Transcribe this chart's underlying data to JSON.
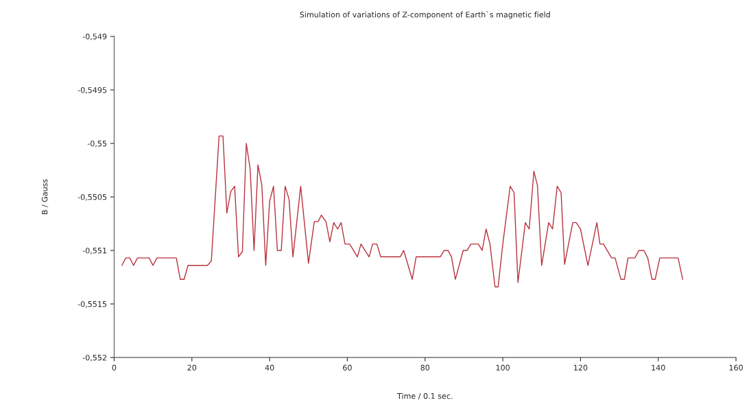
{
  "chart_data": {
    "type": "line",
    "title": "Simulation of variations of Z-component of Earth`s magnetic field",
    "xlabel": "Time / 0.1 sec.",
    "ylabel": "B / Gauss",
    "xlim": [
      0,
      160
    ],
    "xticks": [
      0,
      20,
      40,
      60,
      80,
      100,
      120,
      140,
      160
    ],
    "ylim": [
      -0.552,
      -0.549
    ],
    "yticks": [
      {
        "value": -0.552,
        "label": "-0,552"
      },
      {
        "value": -0.5515,
        "label": "-0,5515"
      },
      {
        "value": -0.551,
        "label": "-0,551"
      },
      {
        "value": -0.5505,
        "label": "-0,5505"
      },
      {
        "value": -0.55,
        "label": "-0,55"
      },
      {
        "value": -0.5495,
        "label": "-0,5495"
      },
      {
        "value": -0.549,
        "label": "-0,549"
      }
    ],
    "grid": false,
    "legend": false,
    "marker": "none",
    "line_style": "solid",
    "series": [
      {
        "color": "#b8323c",
        "x": [
          2,
          3,
          4,
          5,
          6,
          9,
          10,
          11,
          16,
          17,
          18,
          19,
          24,
          25,
          27,
          28,
          29,
          30,
          31,
          32,
          33,
          34,
          35,
          36,
          37,
          38,
          39,
          40,
          41,
          42,
          43,
          44,
          45,
          46,
          47,
          48,
          50,
          51.5,
          52.5,
          53.3,
          54.5,
          55.5,
          56.5,
          57.5,
          58.4,
          59.4,
          60.6,
          62.6,
          63.5,
          65.6,
          66.5,
          67.6,
          68.6,
          73.6,
          74.5,
          76.7,
          77.7,
          83.9,
          84.9,
          85.9,
          86.8,
          87.8,
          89.8,
          90.8,
          91.8,
          93.7,
          94.7,
          95.7,
          96.7,
          98,
          98.8,
          100,
          101.9,
          102.9,
          103.9,
          105.8,
          106.8,
          108,
          108.9,
          110,
          111.8,
          112.8,
          114,
          115,
          115.9,
          118,
          118.9,
          120,
          121.9,
          124.2,
          125,
          125.9,
          128,
          128.9,
          130.4,
          131.3,
          132.2,
          134,
          135,
          136.3,
          137.3,
          138.4,
          139.2,
          140.4,
          145.1,
          146.3
        ],
        "values": [
          -0.55114,
          -0.55107,
          -0.55107,
          -0.55114,
          -0.55107,
          -0.55107,
          -0.55114,
          -0.55107,
          -0.55107,
          -0.55127,
          -0.55127,
          -0.55114,
          -0.55114,
          -0.5511,
          -0.54993,
          -0.54993,
          -0.55065,
          -0.55045,
          -0.5504,
          -0.55106,
          -0.55101,
          -0.55,
          -0.55024,
          -0.551,
          -0.5502,
          -0.55039,
          -0.55114,
          -0.55054,
          -0.5504,
          -0.551,
          -0.551,
          -0.5504,
          -0.55052,
          -0.55106,
          -0.55073,
          -0.5504,
          -0.55112,
          -0.55073,
          -0.55073,
          -0.55067,
          -0.55073,
          -0.55092,
          -0.55074,
          -0.5508,
          -0.55074,
          -0.55094,
          -0.55094,
          -0.55106,
          -0.55094,
          -0.55106,
          -0.55094,
          -0.55094,
          -0.55106,
          -0.55106,
          -0.551,
          -0.55127,
          -0.55106,
          -0.55106,
          -0.551,
          -0.551,
          -0.55106,
          -0.55127,
          -0.551,
          -0.551,
          -0.55094,
          -0.55094,
          -0.551,
          -0.5508,
          -0.55094,
          -0.55134,
          -0.55134,
          -0.55094,
          -0.5504,
          -0.55046,
          -0.5513,
          -0.55074,
          -0.5508,
          -0.55026,
          -0.55039,
          -0.55114,
          -0.55074,
          -0.5508,
          -0.5504,
          -0.55046,
          -0.55113,
          -0.55074,
          -0.55074,
          -0.5508,
          -0.55114,
          -0.55074,
          -0.55094,
          -0.55094,
          -0.55107,
          -0.55107,
          -0.55127,
          -0.55127,
          -0.55107,
          -0.55107,
          -0.551,
          -0.551,
          -0.55107,
          -0.55127,
          -0.55127,
          -0.55107,
          -0.55107,
          -0.55127
        ]
      }
    ]
  }
}
